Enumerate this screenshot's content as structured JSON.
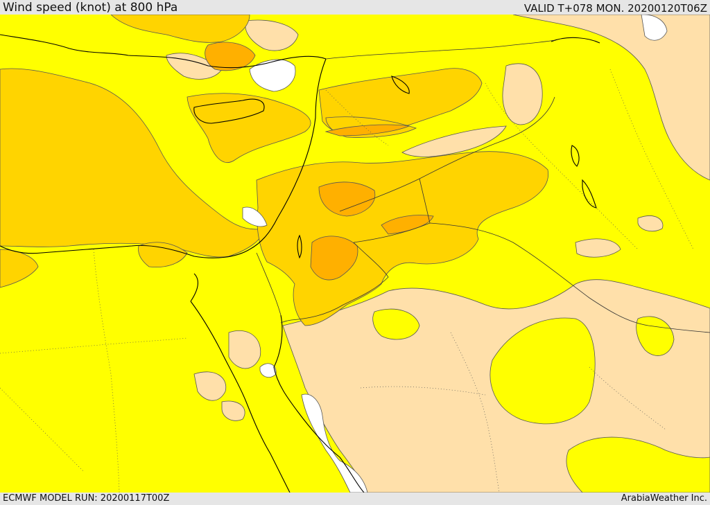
{
  "header": {
    "title": "Wind speed (knot) at 800 hPa",
    "valid_time": "VALID T+078 MON. 20200120T06Z"
  },
  "footer": {
    "model_run": "ECMWF MODEL RUN: 20200117T00Z",
    "credit": "ArabiaWeather Inc."
  },
  "legend_colors": {
    "calm": "#ffffff",
    "low": "#ffe0aa",
    "moderate": "#ffff00",
    "fresh": "#ffd400",
    "strong": "#ffb000"
  }
}
